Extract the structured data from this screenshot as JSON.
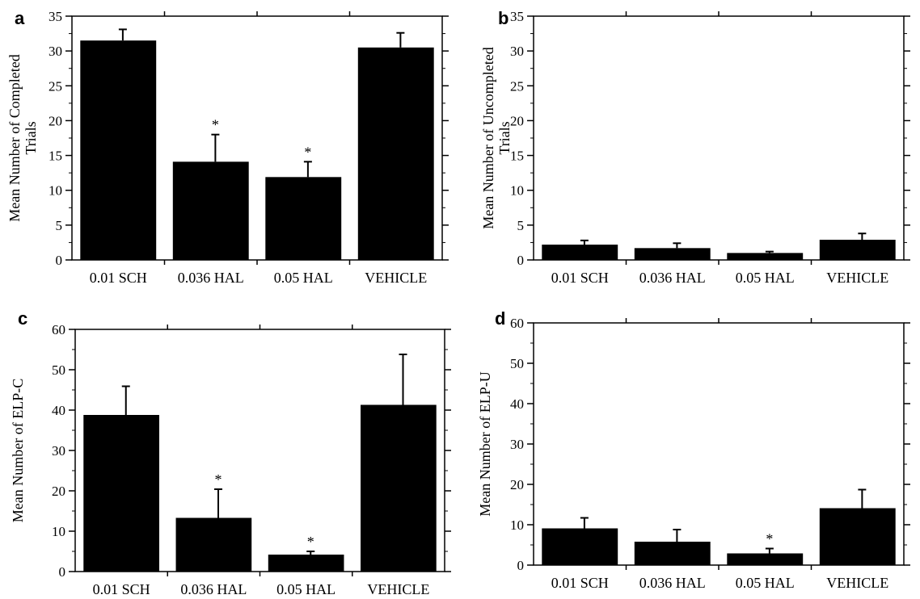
{
  "chart_data": [
    {
      "type": "bar",
      "panel": "a",
      "ylabel": [
        "Mean Number of Completed",
        "Trials"
      ],
      "ylim": [
        0,
        35
      ],
      "yticks": [
        0,
        5,
        10,
        15,
        20,
        25,
        30,
        35
      ],
      "categories": [
        "0.01 SCH",
        "0.036 HAL",
        "0.05 HAL",
        "VEHICLE"
      ],
      "values": [
        31.5,
        14.1,
        11.9,
        30.5
      ],
      "errors": [
        1.6,
        3.9,
        2.2,
        2.1
      ],
      "significance": [
        "",
        "*",
        "*",
        ""
      ],
      "grid": false,
      "colors": {
        "bar": "#000000"
      }
    },
    {
      "type": "bar",
      "panel": "b",
      "ylabel": [
        "Mean Number of Uncompleted",
        "Trials"
      ],
      "ylim": [
        0,
        35
      ],
      "yticks": [
        0,
        5,
        10,
        15,
        20,
        25,
        30,
        35
      ],
      "categories": [
        "0.01 SCH",
        "0.036 HAL",
        "0.05 HAL",
        "VEHICLE"
      ],
      "values": [
        2.2,
        1.7,
        1.0,
        2.9
      ],
      "errors": [
        0.6,
        0.7,
        0.2,
        0.9
      ],
      "significance": [
        "",
        "",
        "",
        ""
      ],
      "grid": false,
      "colors": {
        "bar": "#000000"
      }
    },
    {
      "type": "bar",
      "panel": "c",
      "ylabel": [
        "Mean Number of ELP-C"
      ],
      "ylim": [
        0,
        60
      ],
      "yticks": [
        0,
        10,
        20,
        30,
        40,
        50,
        60
      ],
      "categories": [
        "0.01 SCH",
        "0.036 HAL",
        "0.05 HAL",
        "VEHICLE"
      ],
      "values": [
        38.8,
        13.3,
        4.2,
        41.3
      ],
      "errors": [
        7.1,
        7.1,
        0.8,
        12.5
      ],
      "significance": [
        "",
        "*",
        "*",
        ""
      ],
      "grid": false,
      "colors": {
        "bar": "#000000"
      }
    },
    {
      "type": "bar",
      "panel": "d",
      "ylabel": [
        "Mean Number of ELP-U"
      ],
      "ylim": [
        0,
        60
      ],
      "yticks": [
        0,
        10,
        20,
        30,
        40,
        50,
        60
      ],
      "categories": [
        "0.01 SCH",
        "0.036 HAL",
        "0.05 HAL",
        "VEHICLE"
      ],
      "values": [
        9.1,
        5.8,
        2.9,
        14.1
      ],
      "errors": [
        2.6,
        3.0,
        1.2,
        4.6
      ],
      "significance": [
        "",
        "",
        "*",
        ""
      ],
      "grid": false,
      "colors": {
        "bar": "#000000"
      }
    }
  ]
}
